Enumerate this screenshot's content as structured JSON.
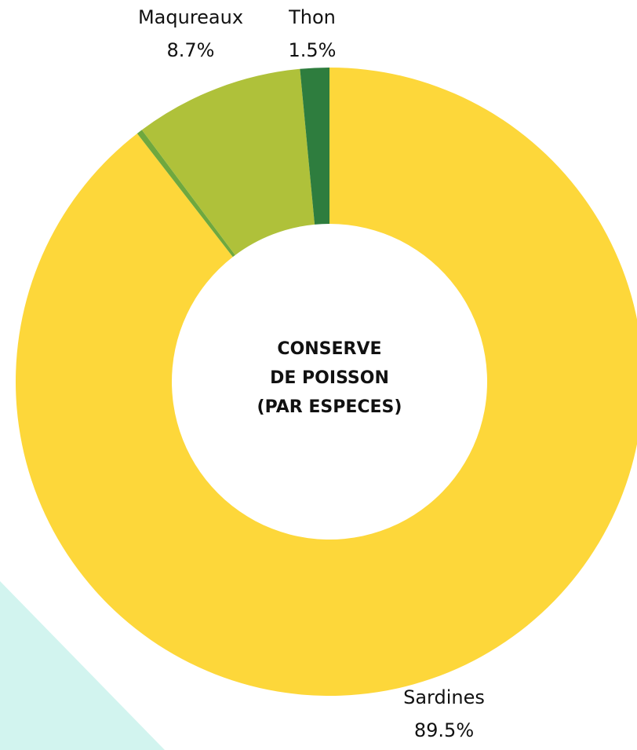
{
  "chart_data": {
    "type": "pie",
    "variant": "donut",
    "title_lines": [
      "CONSERVE",
      "DE POISSON",
      "(PAR ESPECES)"
    ],
    "slices": [
      {
        "label": "Sardines",
        "percent_text": "89.5%",
        "value": 89.5,
        "color": "#FDD73A"
      },
      {
        "label": "",
        "percent_text": "",
        "value": 0.3,
        "color": "#6FA83E"
      },
      {
        "label": "Maqureaux",
        "percent_text": "8.7%",
        "value": 8.7,
        "color": "#AFC13A"
      },
      {
        "label": "Thon",
        "percent_text": "1.5%",
        "value": 1.5,
        "color": "#2E7D3E"
      }
    ],
    "start_angle": "12 o'clock",
    "direction": "clockwise",
    "legend": "none"
  },
  "decor": {
    "triangle_color": "#D2F4EF"
  }
}
